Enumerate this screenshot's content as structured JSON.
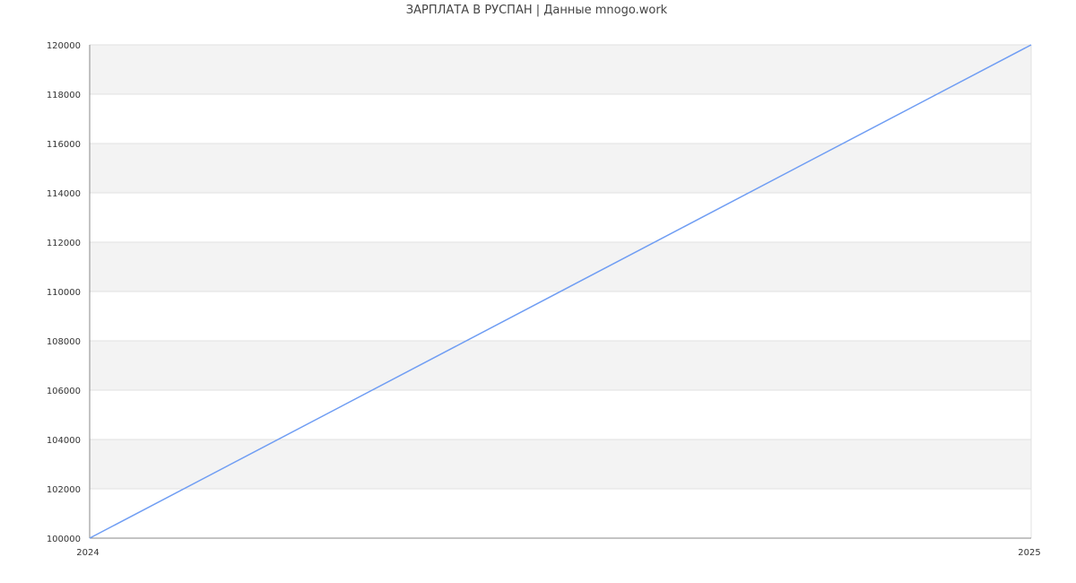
{
  "chart_data": {
    "type": "line",
    "title": "ЗАРПЛАТА В РУСПАН | Данные mnogo.work",
    "xlabel": "",
    "ylabel": "",
    "x_ticks": [
      "2024",
      "2025"
    ],
    "y_ticks": [
      "100000",
      "102000",
      "104000",
      "106000",
      "108000",
      "110000",
      "112000",
      "114000",
      "116000",
      "118000",
      "120000"
    ],
    "ylim": [
      100000,
      120000
    ],
    "grid": true,
    "series": [
      {
        "x": [
          "2024",
          "2025"
        ],
        "values": [
          100000,
          120000
        ],
        "color": "#6f9df3"
      }
    ],
    "colors": {
      "band": "#f3f3f3",
      "grid": "#e0e0e0",
      "axis": "#888888"
    }
  }
}
